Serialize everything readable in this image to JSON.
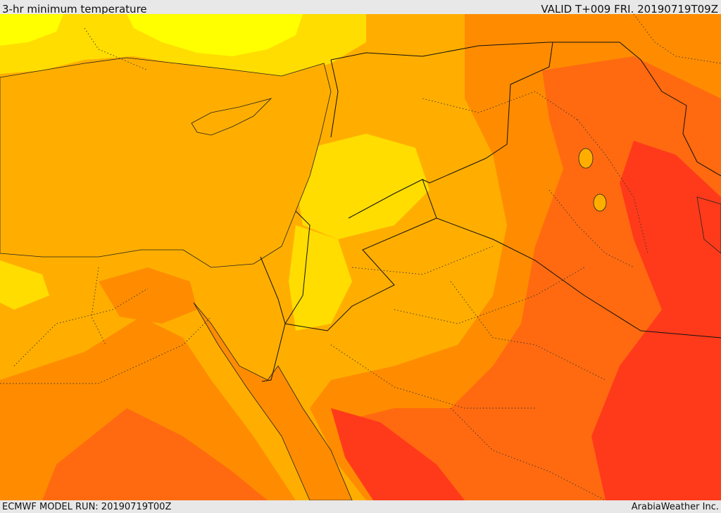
{
  "header": {
    "title": "3-hr minimum temperature",
    "valid": "VALID T+009 FRI. 20190719T09Z"
  },
  "footer": {
    "model_run": "ECMWF MODEL RUN: 20190719T00Z",
    "credit": "ArabiaWeather Inc."
  },
  "colors": {
    "band_yellow_light": "#ffff00",
    "band_yellow": "#ffdd00",
    "band_orange_light": "#ffae00",
    "band_orange": "#ff8c00",
    "band_orange_red": "#ff6a10",
    "band_red": "#ff3a1a"
  }
}
